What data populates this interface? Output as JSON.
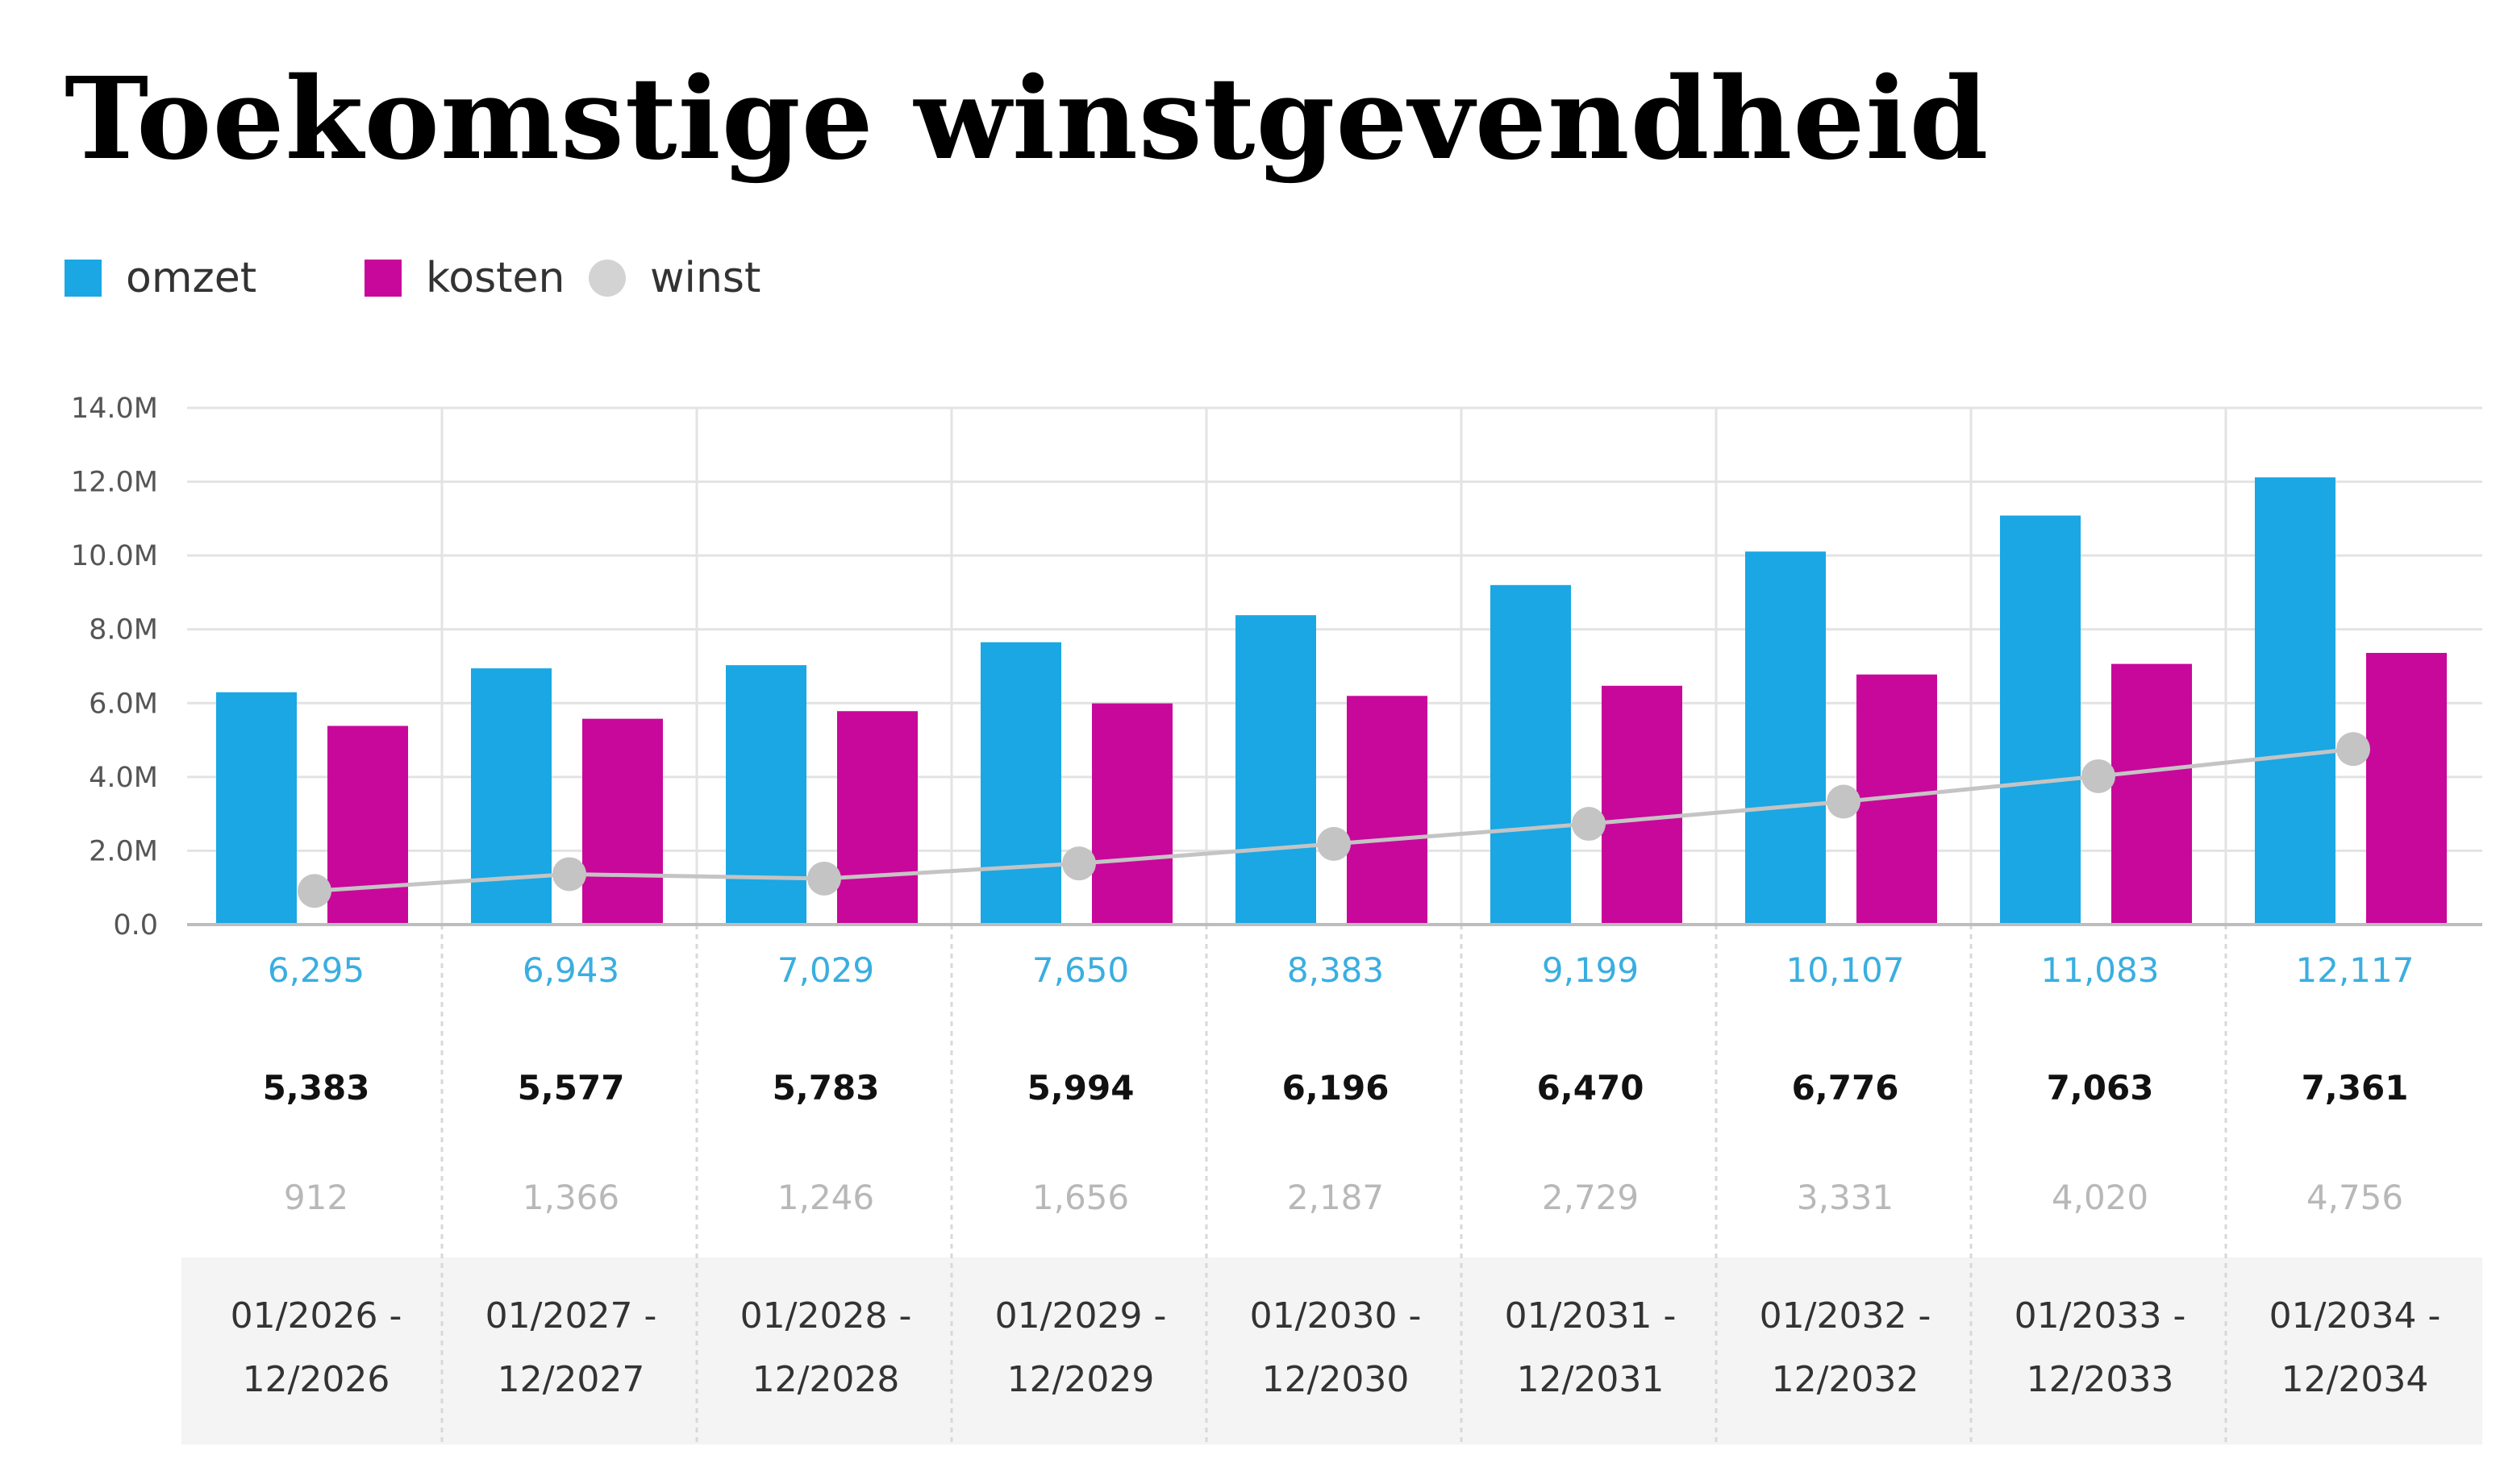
{
  "title": "Toekomstige winstgevendheid",
  "legend": [
    {
      "label": "omzet",
      "color": "#1aa7e4",
      "shape": "square"
    },
    {
      "label": "kosten",
      "color": "#c8089a",
      "shape": "square"
    },
    {
      "label": "winst",
      "color": "#d3d3d3",
      "shape": "circle"
    }
  ],
  "chart_data": {
    "type": "bar",
    "y_ticks": [
      "0.0",
      "2.0M",
      "4.0M",
      "6.0M",
      "8.0M",
      "10.0M",
      "12.0M",
      "14.0M"
    ],
    "ylim": [
      0,
      14000000
    ],
    "grid": true,
    "legend_position": "top-left",
    "categories": [
      [
        "01/2026 -",
        "12/2026"
      ],
      [
        "01/2027 -",
        "12/2027"
      ],
      [
        "01/2028 -",
        "12/2028"
      ],
      [
        "01/2029 -",
        "12/2029"
      ],
      [
        "01/2030 -",
        "12/2030"
      ],
      [
        "01/2031 -",
        "12/2031"
      ],
      [
        "01/2032 -",
        "12/2032"
      ],
      [
        "01/2033 -",
        "12/2033"
      ],
      [
        "01/2034 -",
        "12/2034"
      ]
    ],
    "series": [
      {
        "name": "omzet",
        "type": "bar",
        "color": "#1aa7e4",
        "values": [
          6295000,
          6943000,
          7029000,
          7650000,
          8383000,
          9199000,
          10107000,
          11083000,
          12117000
        ],
        "labels": [
          "6,295",
          "6,943",
          "7,029",
          "7,650",
          "8,383",
          "9,199",
          "10,107",
          "11,083",
          "12,117"
        ]
      },
      {
        "name": "kosten",
        "type": "bar",
        "color": "#c8089a",
        "values": [
          5383000,
          5577000,
          5783000,
          5994000,
          6196000,
          6470000,
          6776000,
          7063000,
          7361000
        ],
        "labels": [
          "5,383",
          "5,577",
          "5,783",
          "5,994",
          "6,196",
          "6,470",
          "6,776",
          "7,063",
          "7,361"
        ]
      },
      {
        "name": "winst",
        "type": "line",
        "color": "#c4c4c4",
        "values": [
          912000,
          1366000,
          1246000,
          1656000,
          2187000,
          2729000,
          3331000,
          4020000,
          4756000
        ],
        "labels": [
          "912",
          "1,366",
          "1,246",
          "1,656",
          "2,187",
          "2,729",
          "3,331",
          "4,020",
          "4,756"
        ]
      }
    ]
  }
}
